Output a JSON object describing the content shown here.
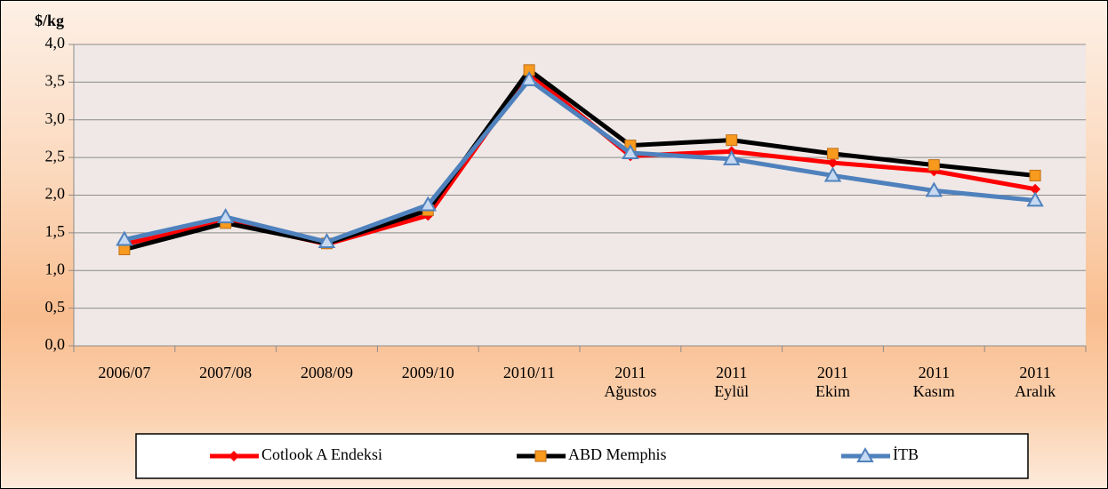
{
  "chart_data": {
    "type": "line",
    "ylabel": "$/kg",
    "categories": [
      "2006/07",
      "2007/08",
      "2008/09",
      "2009/10",
      "2010/11",
      "2011\nAğustos",
      "2011\nEylül",
      "2011\nEkim",
      "2011\nKasım",
      "2011\nAralık"
    ],
    "series": [
      {
        "name": "Cotlook A Endeksi",
        "color": "#ff0000",
        "marker": "diamond",
        "values": [
          1.35,
          1.65,
          1.35,
          1.73,
          3.62,
          2.52,
          2.58,
          2.43,
          2.32,
          2.08
        ]
      },
      {
        "name": "ABD Memphis",
        "color": "#000000",
        "marker": "square",
        "marker_color": "#f79a1e",
        "values": [
          1.28,
          1.63,
          1.36,
          1.8,
          3.66,
          2.66,
          2.73,
          2.55,
          2.4,
          2.26
        ]
      },
      {
        "name": "İTB",
        "color": "#4f81bd",
        "marker": "triangle",
        "marker_color": "#c6d9f1",
        "values": [
          1.41,
          1.71,
          1.38,
          1.87,
          3.53,
          2.56,
          2.48,
          2.26,
          2.06,
          1.93
        ]
      }
    ],
    "ylim": [
      0,
      4
    ],
    "yticks": [
      {
        "value": 0,
        "label": "0,0"
      },
      {
        "value": 0.5,
        "label": "0,5"
      },
      {
        "value": 1,
        "label": "1,0"
      },
      {
        "value": 1.5,
        "label": "1,5"
      },
      {
        "value": 2,
        "label": "2,0"
      },
      {
        "value": 2.5,
        "label": "2,5"
      },
      {
        "value": 3,
        "label": "3,0"
      },
      {
        "value": 3.5,
        "label": "3,5"
      },
      {
        "value": 4,
        "label": "4,0"
      }
    ],
    "grid": true,
    "legend": "bottom"
  }
}
